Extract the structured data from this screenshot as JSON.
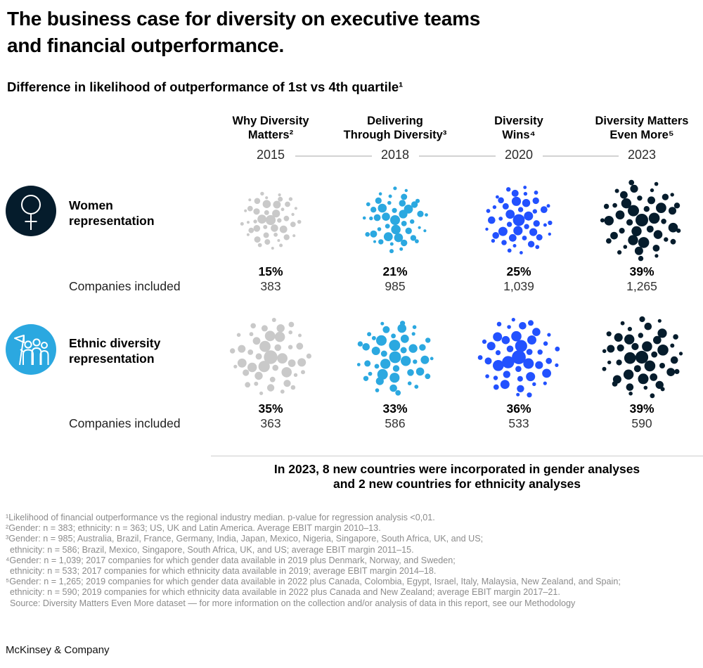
{
  "page": {
    "title": "The business case for diversity on executive teams\nand financial outperformance.",
    "subtitle": "Difference in likelihood of outperformance of 1st vs 4th quartile¹",
    "companies_included_label": "Companies included",
    "note": "In 2023, 8 new countries were incorporated in gender analyses\nand 2 new countries for ethnicity analyses",
    "footer": "McKinsey & Company"
  },
  "chart_data": {
    "type": "packed-bubble-matrix",
    "description": "Difference in likelihood of financial outperformance, 1st vs 4th quartile, across four McKinsey diversity reports",
    "columns": [
      {
        "report": "Why Diversity\nMatters²",
        "year": "2015",
        "color": "#C9C9C9"
      },
      {
        "report": "Delivering\nThrough Diversity³",
        "year": "2018",
        "color": "#2BA8E0"
      },
      {
        "report": "Diversity\nWins⁴",
        "year": "2020",
        "color": "#2251FF"
      },
      {
        "report": "Diversity Matters\nEven More⁵",
        "year": "2023",
        "color": "#051C2C"
      }
    ],
    "rows": [
      {
        "label": "Women\nrepresentation",
        "icon": "female-symbol-icon",
        "icon_bg": "#051C2C",
        "values_pct": [
          15,
          21,
          25,
          39
        ],
        "values_pct_labels": [
          "15%",
          "21%",
          "25%",
          "39%"
        ],
        "companies": [
          "383",
          "985",
          "1,039",
          "1,265"
        ]
      },
      {
        "label": "Ethnic diversity\nrepresentation",
        "icon": "people-flag-icon",
        "icon_bg": "#2BA8E0",
        "values_pct": [
          35,
          33,
          36,
          39
        ],
        "values_pct_labels": [
          "35%",
          "33%",
          "36%",
          "39%"
        ],
        "companies": [
          "363",
          "586",
          "533",
          "590"
        ]
      }
    ]
  },
  "footnotes": [
    "¹Likelihood of financial outperformance vs the regional industry median. p-value for regression analysis <0,01.",
    "²Gender: n = 383; ethnicity: n = 363; US, UK and Latin America. Average EBIT margin 2010–13.",
    "³Gender: n = 985; Australia, Brazil, France, Germany, India, Japan, Mexico, Nigeria, Singapore, South Africa, UK, and US;",
    "ethnicity: n = 586; Brazil, Mexico, Singapore, South Africa, UK, and US; average EBIT margin 2011–15.",
    "⁴Gender: n = 1,039; 2017 companies for which gender data available in 2019 plus Denmark, Norway, and Sweden;",
    "ethnicity: n = 533; 2017 companies for which ethnicity data available in 2019; average EBIT margin 2014–18.",
    "⁵Gender: n = 1,265; 2019 companies for which gender data available in 2022 plus Canada, Colombia, Egypt, Israel, Italy, Malaysia, New Zealand, and Spain;",
    "ethnicity: n = 590; 2019 companies for which ethnicity data available in 2022 plus Canada and New Zealand; average EBIT margin 2017–21.",
    "Source: Diversity Matters Even More dataset — for more information on the collection and/or analysis of data in this report, see our Methodology"
  ]
}
